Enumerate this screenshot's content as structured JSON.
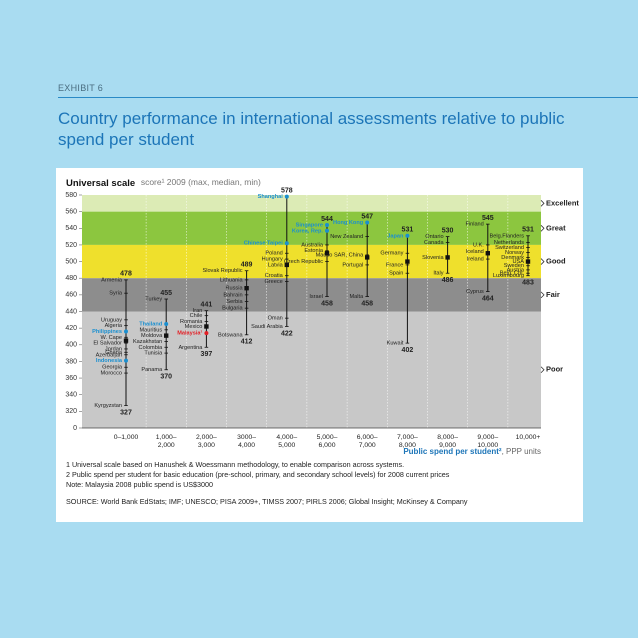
{
  "header": {
    "exhibit": "EXHIBIT 6"
  },
  "notes": [
    "1 Universal scale based on Hanushek & Woessmann methodology, to enable comparison across systems.",
    "2 Public spend per student for basic education (pre-school, primary, and secondary school levels) for 2008 current prices",
    "Note: Malaysia 2008 public spend is US$3000",
    "SOURCE: World Bank EdStats; IMF; UNESCO; PISA 2009+, TIMSS 2007; PIRLS 2006; Global Insight; McKinsey & Company"
  ],
  "chart_data": {
    "type": "range",
    "title": "Country performance in international assessments relative to public spend per student",
    "scale_name": "Universal scale",
    "subtitle": "score¹ 2009 (max, median, min)",
    "x_label": "Public spend per student²",
    "x_label_unit": ", PPP units",
    "ylim": [
      300,
      580
    ],
    "yticks": [
      {
        "value": 300,
        "label": "0"
      },
      320,
      340,
      360,
      380,
      400,
      420,
      440,
      460,
      480,
      500,
      520,
      540,
      560,
      580
    ],
    "bands": [
      {
        "label": "Excellent",
        "from": 560,
        "to": 580,
        "color": "#dcebb5"
      },
      {
        "label": "Great",
        "from": 520,
        "to": 560,
        "color": "#8cc63f"
      },
      {
        "label": "Good",
        "from": 480,
        "to": 520,
        "color": "#efe02c"
      },
      {
        "label": "Fair",
        "from": 440,
        "to": 480,
        "color": "#8d8d8d"
      },
      {
        "label": "Poor",
        "from": 300,
        "to": 440,
        "color": "#c8c8c8"
      }
    ],
    "columns": [
      {
        "category": [
          "0–1,000"
        ],
        "max": 478,
        "median": 405,
        "min": 327,
        "countries": [
          {
            "name": "Armenia",
            "value": 478
          },
          {
            "name": "Syria",
            "value": 462
          },
          {
            "name": "Uruguay",
            "value": 430
          },
          {
            "name": "Algeria",
            "value": 423
          },
          {
            "name": "Philippines",
            "value": 416,
            "color": "#1a8fd0"
          },
          {
            "name": "W. Cape",
            "value": 409
          },
          {
            "name": "El Salvador",
            "value": 402
          },
          {
            "name": "Jordan",
            "value": 395
          },
          {
            "name": "Azerbaijan",
            "value": 388
          },
          {
            "name": "Ghana",
            "value": 391
          },
          {
            "name": "Indonesia",
            "value": 381,
            "color": "#1a8fd0"
          },
          {
            "name": "Georgia",
            "value": 373
          },
          {
            "name": "Morocco",
            "value": 366
          },
          {
            "name": "Kyrgyzstan",
            "value": 327
          }
        ]
      },
      {
        "category": [
          "1,000–",
          "2,000"
        ],
        "max": 455,
        "median": 411,
        "min": 370,
        "countries": [
          {
            "name": "Turkey",
            "value": 455
          },
          {
            "name": "Thailand",
            "value": 425,
            "color": "#1a8fd0"
          },
          {
            "name": "Mauritius",
            "value": 418
          },
          {
            "name": "Moldova",
            "value": 411
          },
          {
            "name": "Kazakhstan",
            "value": 404
          },
          {
            "name": "Colombia",
            "value": 397
          },
          {
            "name": "Tunisia",
            "value": 390
          },
          {
            "name": "Panama",
            "value": 370
          }
        ]
      },
      {
        "category": [
          "2,000–",
          "3,000"
        ],
        "max": 441,
        "median": 422,
        "min": 397,
        "countries": [
          {
            "name": "Iran",
            "value": 441
          },
          {
            "name": "Chile",
            "value": 435
          },
          {
            "name": "Romania",
            "value": 428
          },
          {
            "name": "Mexico",
            "value": 422
          },
          {
            "name": "Malaysia¹",
            "value": 414,
            "color": "#e31e24"
          },
          {
            "name": "Argentina",
            "value": 397
          }
        ]
      },
      {
        "category": [
          "3000–",
          "4,000"
        ],
        "max": 489,
        "median": 468,
        "min": 412,
        "countries": [
          {
            "name": "Slovak Republic",
            "value": 489
          },
          {
            "name": "Lithuania",
            "value": 478
          },
          {
            "name": "Russia",
            "value": 468
          },
          {
            "name": "Bahrain",
            "value": 460
          },
          {
            "name": "Serbia",
            "value": 452
          },
          {
            "name": "Bulgaria",
            "value": 444
          },
          {
            "name": "Botswana",
            "value": 412
          }
        ]
      },
      {
        "category": [
          "4,000–",
          "5,000"
        ],
        "max": 578,
        "median": 496,
        "min": 422,
        "countries": [
          {
            "name": "Shanghai",
            "value": 578,
            "color": "#1a8fd0"
          },
          {
            "name": "Chinese Taipei",
            "value": 522,
            "color": "#1a8fd0"
          },
          {
            "name": "Poland",
            "value": 510
          },
          {
            "name": "Hungary",
            "value": 503
          },
          {
            "name": "Latvia",
            "value": 496
          },
          {
            "name": "Croatia",
            "value": 483
          },
          {
            "name": "Greece",
            "value": 476
          },
          {
            "name": "Oman",
            "value": 432
          },
          {
            "name": "Saudi Arabia",
            "value": 422
          }
        ]
      },
      {
        "category": [
          "5,000–",
          "6,000"
        ],
        "max": 544,
        "median": 510,
        "min": 458,
        "countries": [
          {
            "name": "Singapore",
            "value": 544,
            "color": "#1a8fd0"
          },
          {
            "name": "Korea, Rep.",
            "value": 537,
            "color": "#1a8fd0"
          },
          {
            "name": "Australia",
            "value": 520
          },
          {
            "name": "Estonia",
            "value": 513
          },
          {
            "name": "Czech Republic",
            "value": 500
          },
          {
            "name": "Israel",
            "value": 458
          }
        ]
      },
      {
        "category": [
          "6,000–",
          "7,000"
        ],
        "max": 547,
        "median": 505,
        "min": 458,
        "countries": [
          {
            "name": "Hong Kong",
            "value": 547,
            "color": "#1a8fd0"
          },
          {
            "name": "New Zealand",
            "value": 530
          },
          {
            "name": "Macao SAR, China",
            "value": 508
          },
          {
            "name": "Portugal",
            "value": 496
          },
          {
            "name": "Malta",
            "value": 458
          }
        ]
      },
      {
        "category": [
          "7,000–",
          "8,000"
        ],
        "max": 531,
        "median": 500,
        "min": 402,
        "countries": [
          {
            "name": "Japan",
            "value": 531,
            "color": "#1a8fd0"
          },
          {
            "name": "Germany",
            "value": 510
          },
          {
            "name": "France",
            "value": 496
          },
          {
            "name": "Spain",
            "value": 486
          },
          {
            "name": "Kuwait",
            "value": 402
          }
        ]
      },
      {
        "category": [
          "8,000–",
          "9,000"
        ],
        "max": 530,
        "median": 505,
        "min": 486,
        "countries": [
          {
            "name": "Ontario",
            "value": 530
          },
          {
            "name": "Canada",
            "value": 523
          },
          {
            "name": "Slovenia",
            "value": 505
          },
          {
            "name": "Italy",
            "value": 486
          }
        ]
      },
      {
        "category": [
          "9,000–",
          "10,000"
        ],
        "max": 545,
        "median": 510,
        "min": 464,
        "countries": [
          {
            "name": "Finland",
            "value": 545
          },
          {
            "name": "U.K.",
            "value": 520
          },
          {
            "name": "Iceland",
            "value": 512
          },
          {
            "name": "Ireland",
            "value": 503
          },
          {
            "name": "Cyprus",
            "value": 464
          }
        ]
      },
      {
        "category": [
          "10,000+"
        ],
        "max": 531,
        "median": 500,
        "min": 483,
        "countries": [
          {
            "name": "Belg.Flanders",
            "value": 531
          },
          {
            "name": "Netherlands",
            "value": 523
          },
          {
            "name": "Switzerland",
            "value": 517
          },
          {
            "name": "Norway",
            "value": 511
          },
          {
            "name": "Denmark",
            "value": 505
          },
          {
            "name": "USA",
            "value": 500
          },
          {
            "name": "Sweden",
            "value": 495
          },
          {
            "name": "Austria",
            "value": 490
          },
          {
            "name": "Belg. Chl.",
            "value": 486
          },
          {
            "name": "Luxembourg",
            "value": 483
          }
        ]
      }
    ]
  }
}
